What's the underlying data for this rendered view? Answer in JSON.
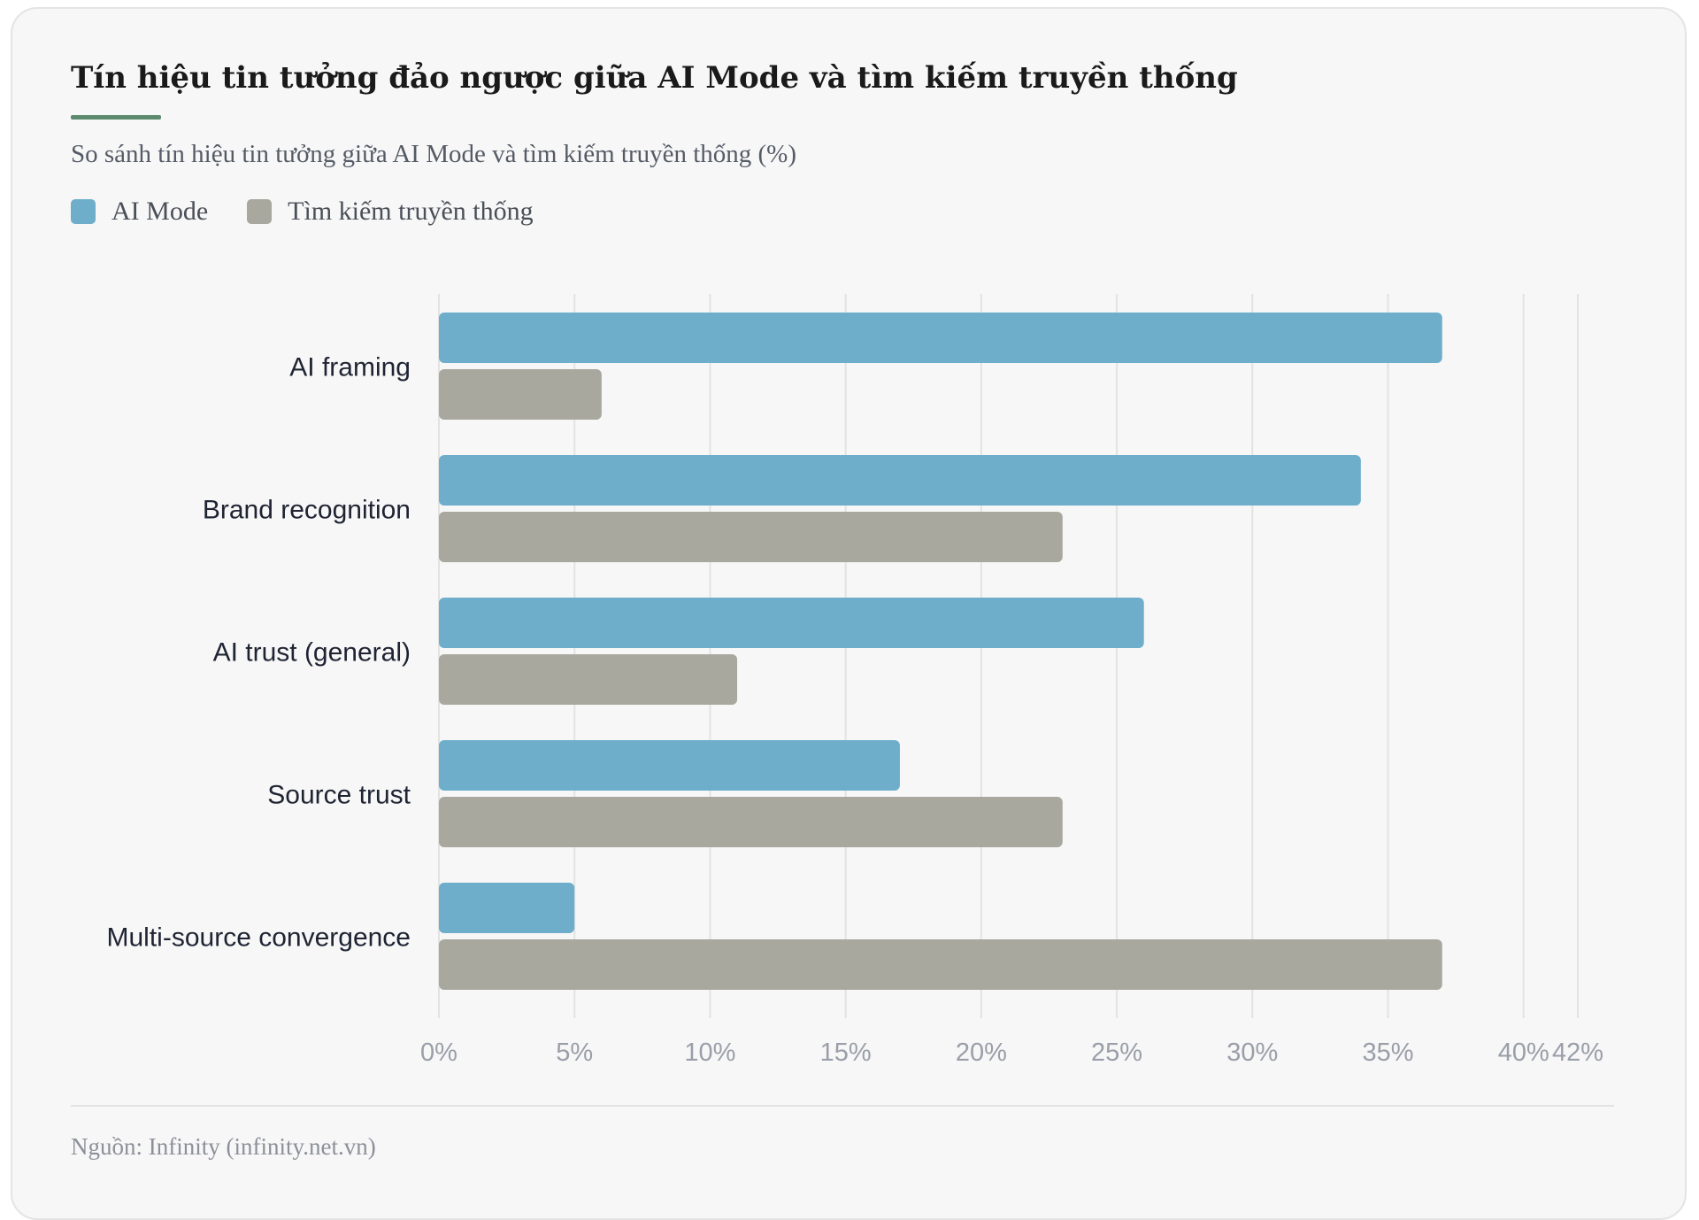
{
  "chart_data": {
    "type": "bar",
    "orientation": "horizontal",
    "title": "Tín hiệu tin tưởng đảo ngược giữa AI Mode và tìm kiếm truyền thống",
    "subtitle": "So sánh tín hiệu tin tưởng giữa AI Mode và tìm kiếm truyền thống (%)",
    "categories": [
      "AI framing",
      "Brand recognition",
      "AI trust (general)",
      "Source trust",
      "Multi-source convergence"
    ],
    "series": [
      {
        "name": "AI Mode",
        "color": "#6eaecb",
        "values": [
          37,
          34,
          26,
          17,
          5
        ]
      },
      {
        "name": "Tìm kiếm truyền thống",
        "color": "#a8a89f",
        "values": [
          6,
          23,
          11,
          23,
          37
        ]
      }
    ],
    "xlim": [
      0,
      42
    ],
    "xticks": [
      0,
      5,
      10,
      15,
      20,
      25,
      30,
      35,
      40,
      42
    ],
    "xtick_labels": [
      "0%",
      "5%",
      "10%",
      "15%",
      "20%",
      "25%",
      "30%",
      "35%",
      "40%",
      "42%"
    ],
    "grid": true,
    "legend_position": "top-left",
    "source": "Nguồn: Infinity (infinity.net.vn)"
  }
}
